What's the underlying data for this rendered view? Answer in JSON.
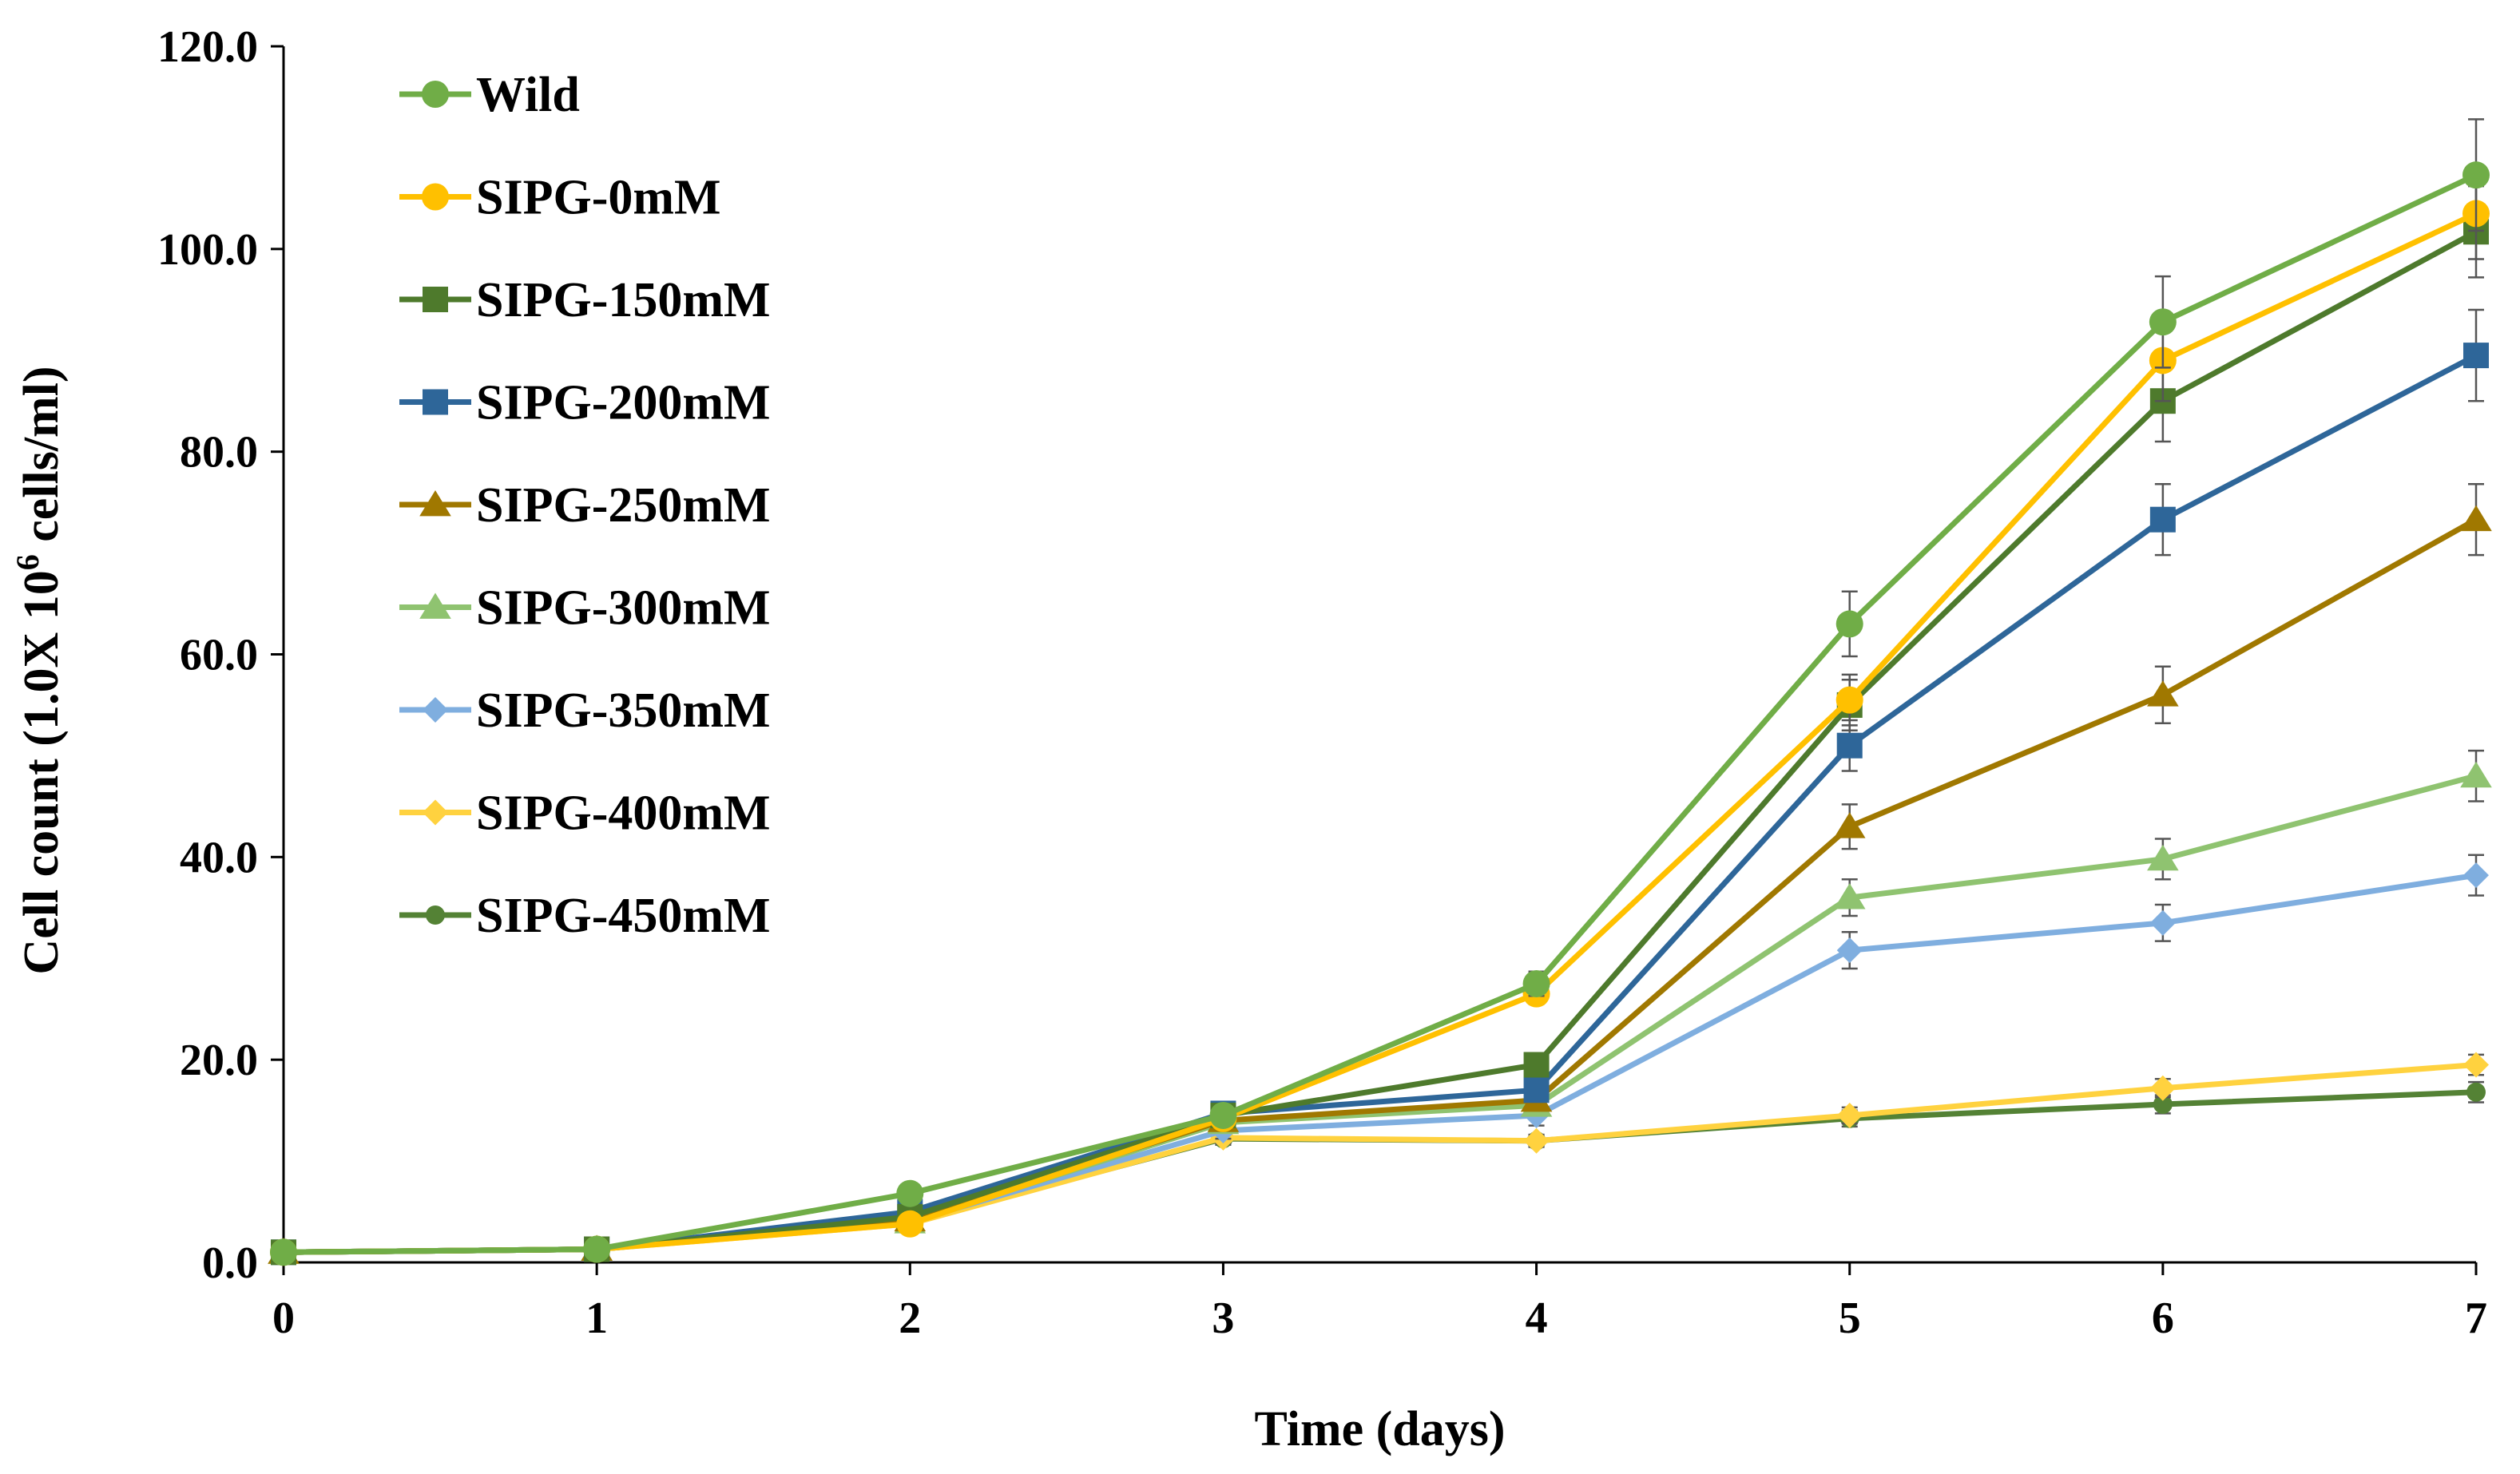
{
  "chart_data": {
    "type": "line",
    "title": "",
    "xlabel": "Time (days)",
    "ylabel_prefix": "Cell count (1.0X 10",
    "ylabel_sup": "6",
    "ylabel_suffix": " cells/ml)",
    "x": [
      0,
      1,
      2,
      3,
      4,
      5,
      6,
      7
    ],
    "x_tick_labels": [
      "0",
      "1",
      "2",
      "3",
      "4",
      "5",
      "6",
      "7"
    ],
    "ylim": [
      0,
      120
    ],
    "xlim": [
      0,
      7
    ],
    "y_ticks": [
      0,
      20,
      40,
      60,
      80,
      100,
      120
    ],
    "y_tick_labels": [
      "0.0",
      "20.0",
      "40.0",
      "60.0",
      "80.0",
      "100.0",
      "120.0"
    ],
    "legend_position": "top-left",
    "series": [
      {
        "name": "Wild",
        "color": "#70AD47",
        "marker": "circle",
        "values": [
          1.0,
          1.3,
          6.8,
          14.5,
          27.5,
          63.0,
          92.8,
          107.3
        ],
        "errors": [
          0.2,
          0.2,
          0.5,
          0.8,
          1.2,
          3.2,
          4.5,
          5.5
        ]
      },
      {
        "name": "SIPG-0mM",
        "color": "#FFC000",
        "marker": "circle",
        "values": [
          1.0,
          1.3,
          3.8,
          14.2,
          26.5,
          55.5,
          89.0,
          103.5
        ],
        "errors": [
          0.2,
          0.2,
          0.4,
          0.8,
          1.0,
          2.5,
          4.0,
          4.5
        ]
      },
      {
        "name": "SIPG-150mM",
        "color": "#4E7A2C",
        "marker": "square",
        "values": [
          1.0,
          1.3,
          4.5,
          14.5,
          19.5,
          55.0,
          85.0,
          101.7
        ],
        "errors": [
          0.2,
          0.2,
          0.4,
          0.8,
          1.0,
          2.5,
          4.0,
          4.5
        ]
      },
      {
        "name": "SIPG-200mM",
        "color": "#2E6699",
        "marker": "square",
        "values": [
          1.0,
          1.3,
          5.0,
          14.7,
          17.0,
          51.0,
          73.3,
          89.5
        ],
        "errors": [
          0.2,
          0.2,
          0.4,
          0.8,
          1.0,
          2.5,
          3.5,
          4.5
        ]
      },
      {
        "name": "SIPG-250mM",
        "color": "#A07800",
        "marker": "triangle",
        "values": [
          1.0,
          1.3,
          4.2,
          14.0,
          16.0,
          43.0,
          56.0,
          73.3
        ],
        "errors": [
          0.2,
          0.2,
          0.4,
          0.8,
          1.0,
          2.2,
          2.8,
          3.5
        ]
      },
      {
        "name": "SIPG-300mM",
        "color": "#8FC370",
        "marker": "triangle",
        "values": [
          1.0,
          1.3,
          4.0,
          13.8,
          15.5,
          36.0,
          39.8,
          48.0
        ],
        "errors": [
          0.2,
          0.2,
          0.4,
          0.8,
          1.0,
          1.8,
          2.0,
          2.5
        ]
      },
      {
        "name": "SIPG-350mM",
        "color": "#7FAEDF",
        "marker": "diamond",
        "values": [
          1.0,
          1.3,
          4.0,
          13.0,
          14.5,
          30.8,
          33.5,
          38.2
        ],
        "errors": [
          0.2,
          0.2,
          0.4,
          0.8,
          1.0,
          1.8,
          1.8,
          2.0
        ]
      },
      {
        "name": "SIPG-400mM",
        "color": "#FFD23F",
        "marker": "diamond",
        "values": [
          1.0,
          1.3,
          3.8,
          12.3,
          12.0,
          14.5,
          17.2,
          19.5
        ],
        "errors": [
          0.2,
          0.2,
          0.3,
          0.6,
          0.6,
          0.8,
          0.9,
          1.0
        ]
      },
      {
        "name": "SIPG-450mM",
        "color": "#548235",
        "marker": "circle-small",
        "values": [
          1.0,
          1.3,
          4.0,
          12.2,
          12.0,
          14.2,
          15.6,
          16.8
        ],
        "errors": [
          0.2,
          0.2,
          0.3,
          0.6,
          0.6,
          0.8,
          0.9,
          1.0
        ]
      }
    ]
  }
}
